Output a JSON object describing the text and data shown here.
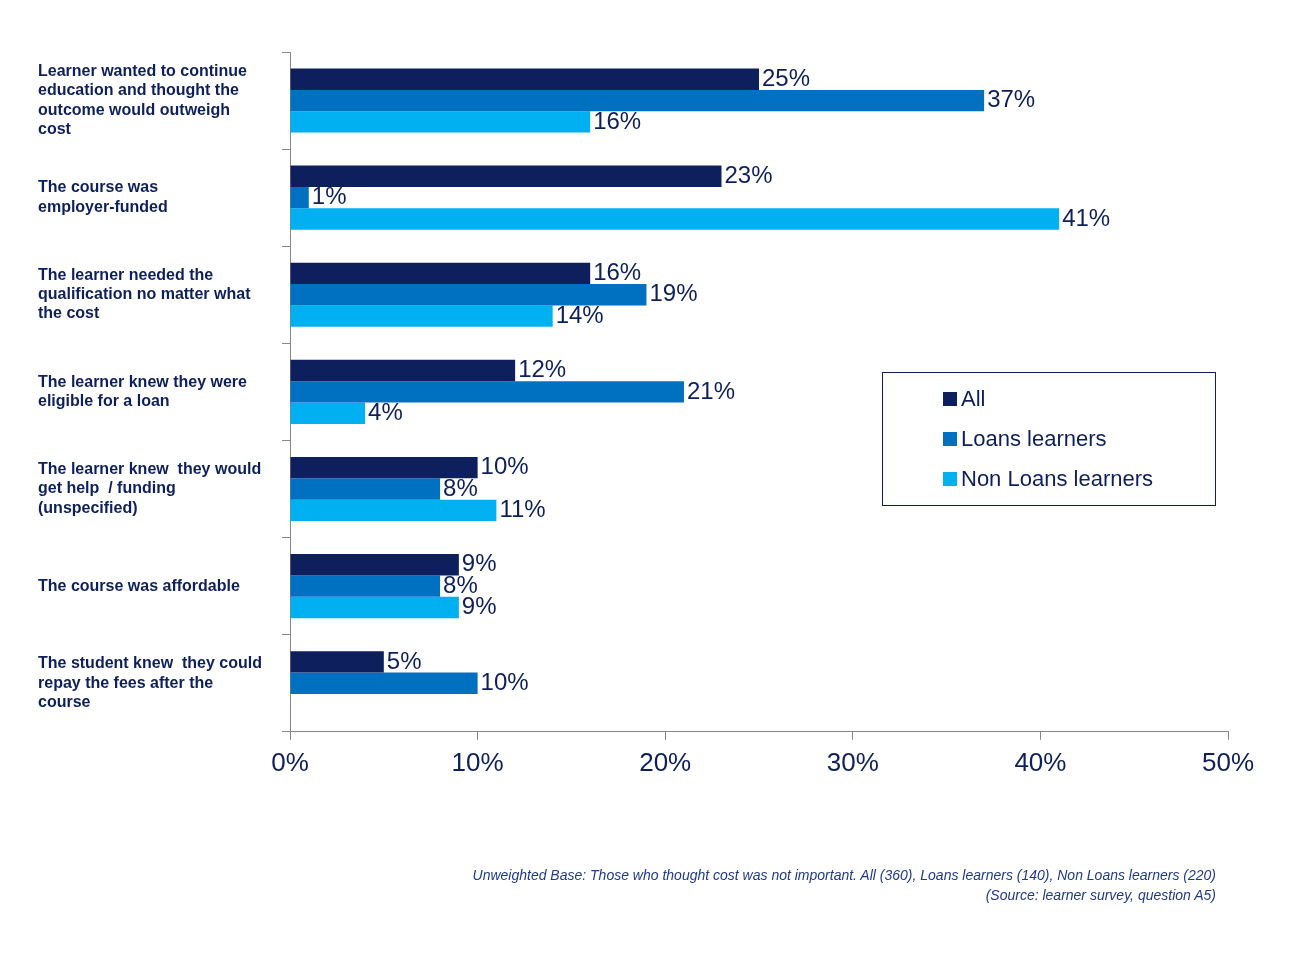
{
  "chart_data": {
    "type": "bar",
    "orientation": "horizontal",
    "categories": [
      "Learner wanted to continue education and thought the outcome would outweigh cost",
      "The course was employer-funded",
      "The learner needed the qualification no matter what the cost",
      "The learner knew they were eligible for a loan",
      "The learner knew  they would get help  / funding (unspecified)",
      "The course was affordable",
      "The student knew  they could repay the fees after the course"
    ],
    "series": [
      {
        "name": "All",
        "color": "#0d1f5c",
        "values": [
          25,
          23,
          16,
          12,
          10,
          9,
          5
        ],
        "value_labels": [
          "25%",
          "23%",
          "16%",
          "12%",
          "10%",
          "9%",
          "5%"
        ]
      },
      {
        "name": "Loans learners",
        "color": "#0070c0",
        "values": [
          37,
          1,
          19,
          21,
          8,
          8,
          10
        ],
        "value_labels": [
          "37%",
          "1%",
          "19%",
          "21%",
          "8%",
          "8%",
          "10%"
        ]
      },
      {
        "name": "Non Loans learners",
        "color": "#00b0f0",
        "values": [
          16,
          41,
          14,
          4,
          11,
          9,
          null
        ],
        "value_labels": [
          "16%",
          "41%",
          "14%",
          "4%",
          "11%",
          "9%",
          null
        ]
      }
    ],
    "xlim": [
      0,
      50
    ],
    "xticks": [
      {
        "value": 0,
        "label": "0%"
      },
      {
        "value": 10,
        "label": "10%"
      },
      {
        "value": 20,
        "label": "20%"
      },
      {
        "value": 30,
        "label": "30%"
      },
      {
        "value": 40,
        "label": "40%"
      },
      {
        "value": 50,
        "label": "50%"
      }
    ],
    "grid": false,
    "legend": "right",
    "annotations": [
      "Unweighted Base: Those who thought cost was not important. All (360), Loans learners (140), Non Loans learners (220)",
      "(Source: learner survey, question A5)"
    ]
  }
}
